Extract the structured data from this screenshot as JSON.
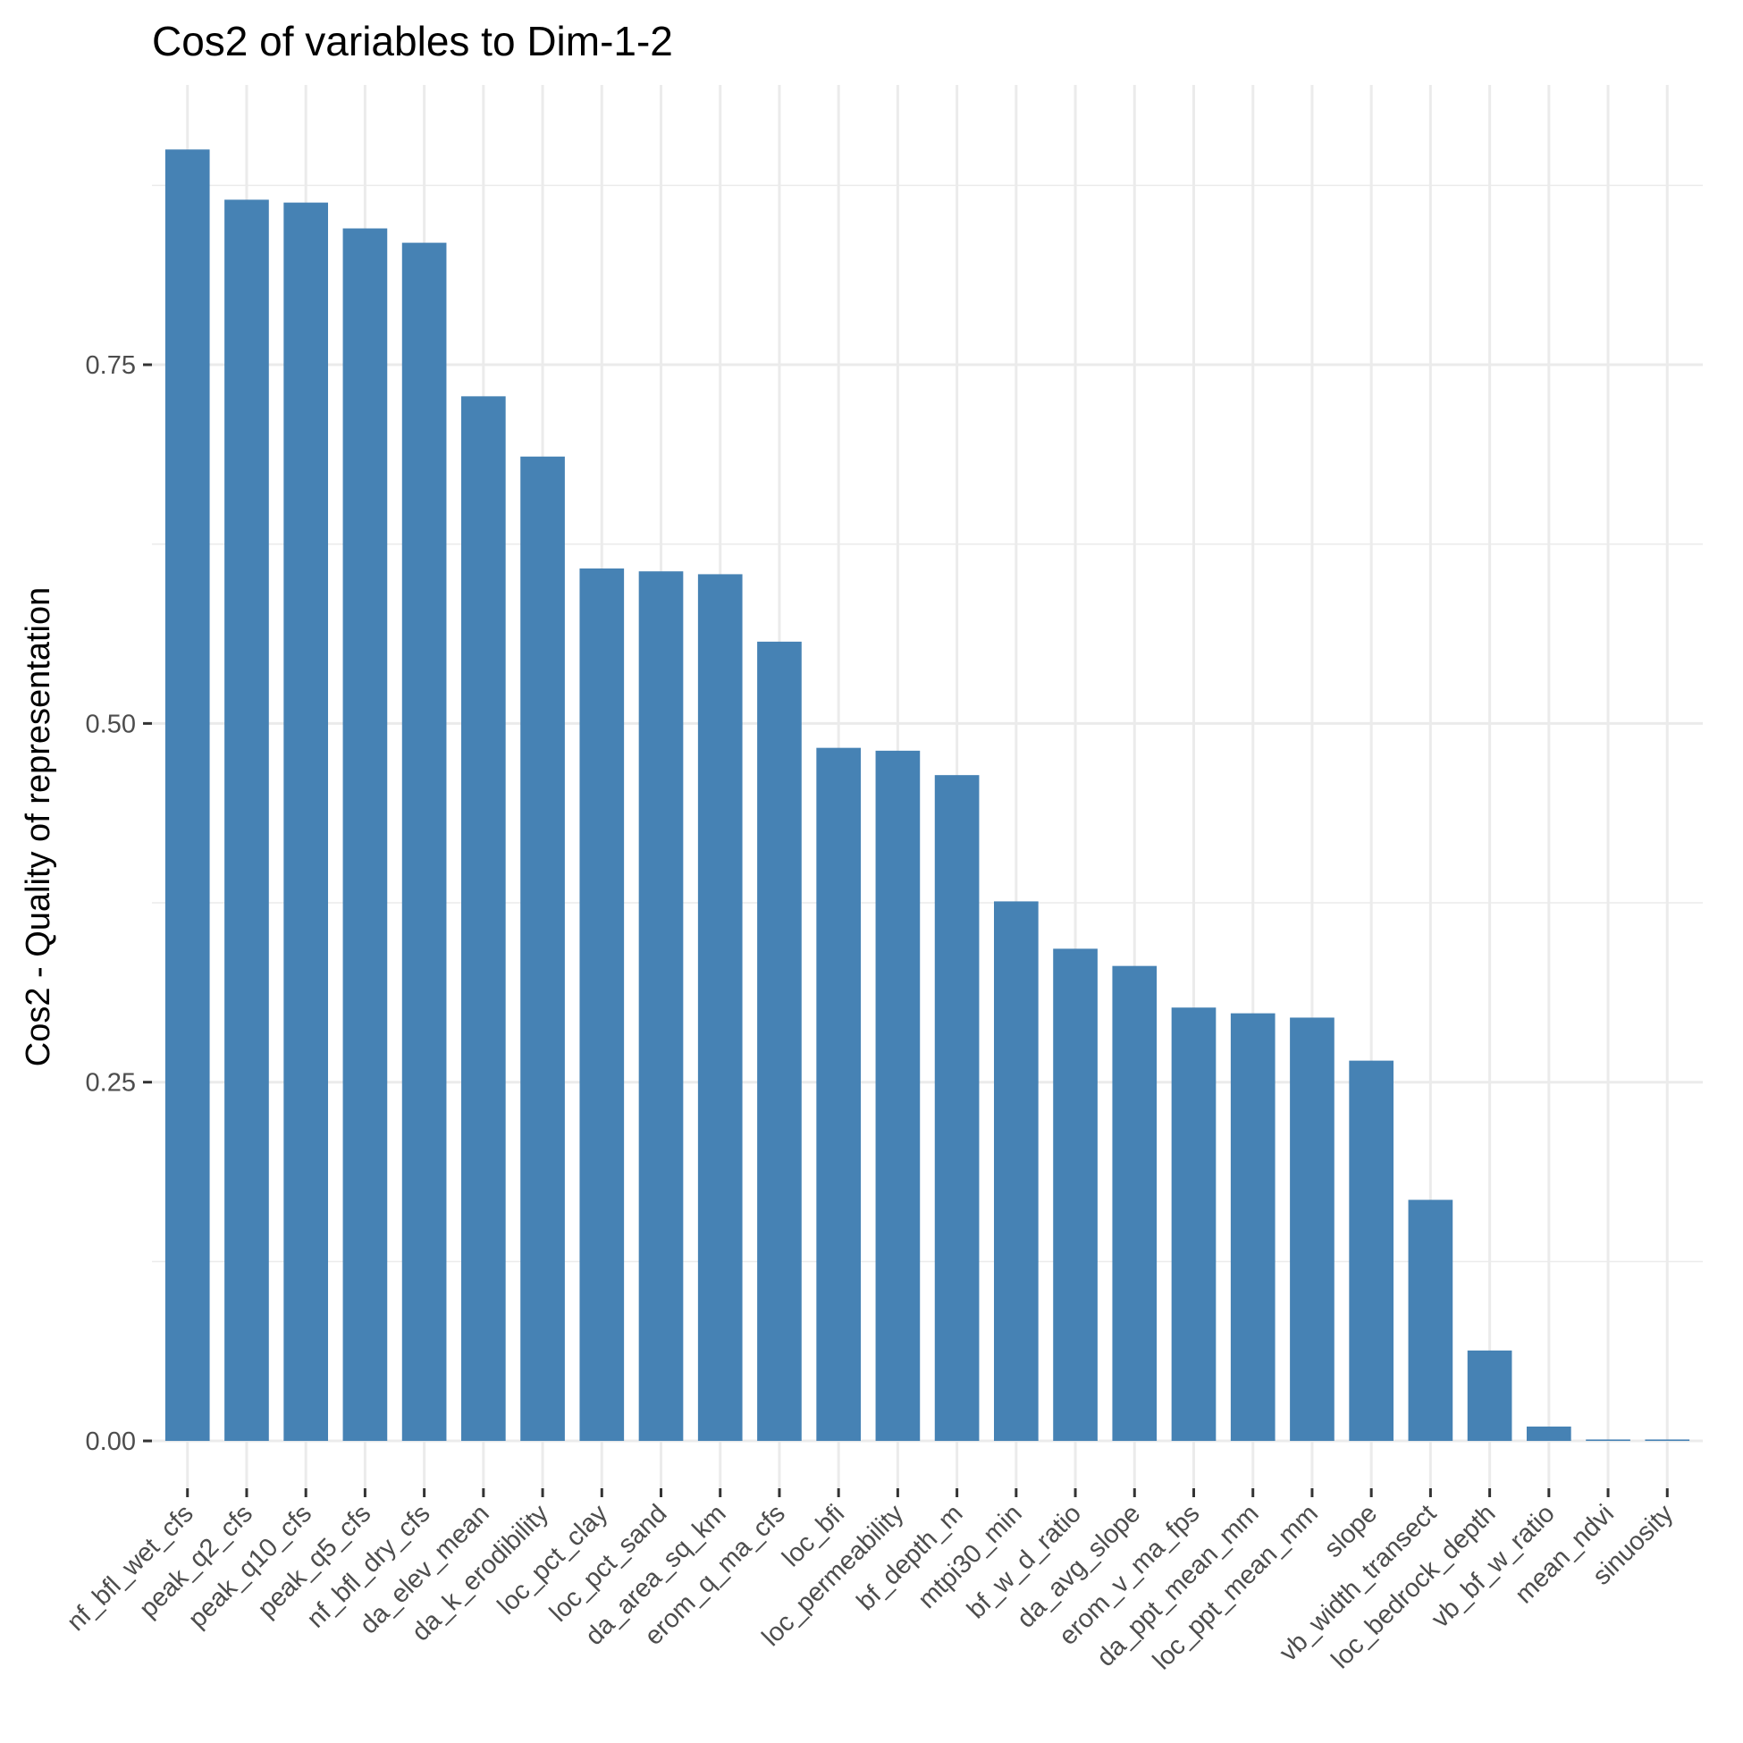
{
  "chart_data": {
    "type": "bar",
    "title": "Cos2 of variables to Dim-1-2",
    "xlabel": "",
    "ylabel": "Cos2 - Quality of representation",
    "ylim": [
      -0.033,
      0.945
    ],
    "yticks": [
      "0.00",
      "0.25",
      "0.50",
      "0.75"
    ],
    "ytick_values": [
      0,
      0.25,
      0.5,
      0.75
    ],
    "grid": true,
    "legend": "none",
    "bar_color": "#4682B4",
    "grid_color": "#EBEBEB",
    "categories": [
      "nf_bfl_wet_cfs",
      "peak_q2_cfs",
      "peak_q10_cfs",
      "peak_q5_cfs",
      "nf_bfl_dry_cfs",
      "da_elev_mean",
      "da_k_erodibility",
      "loc_pct_clay",
      "loc_pct_sand",
      "da_area_sq_km",
      "erom_q_ma_cfs",
      "loc_bfi",
      "loc_permeability",
      "bf_depth_m",
      "mtpi30_min",
      "bf_w_d_ratio",
      "da_avg_slope",
      "erom_v_ma_fps",
      "da_ppt_mean_mm",
      "loc_ppt_mean_mm",
      "slope",
      "vb_width_transect",
      "loc_bedrock_depth",
      "vb_bf_w_ratio",
      "mean_ndvi",
      "sinuosity"
    ],
    "values": [
      0.9,
      0.865,
      0.863,
      0.845,
      0.835,
      0.728,
      0.686,
      0.608,
      0.606,
      0.604,
      0.557,
      0.483,
      0.481,
      0.464,
      0.376,
      0.343,
      0.331,
      0.302,
      0.298,
      0.295,
      0.265,
      0.168,
      0.063,
      0.01,
      0.001,
      0.001
    ]
  }
}
